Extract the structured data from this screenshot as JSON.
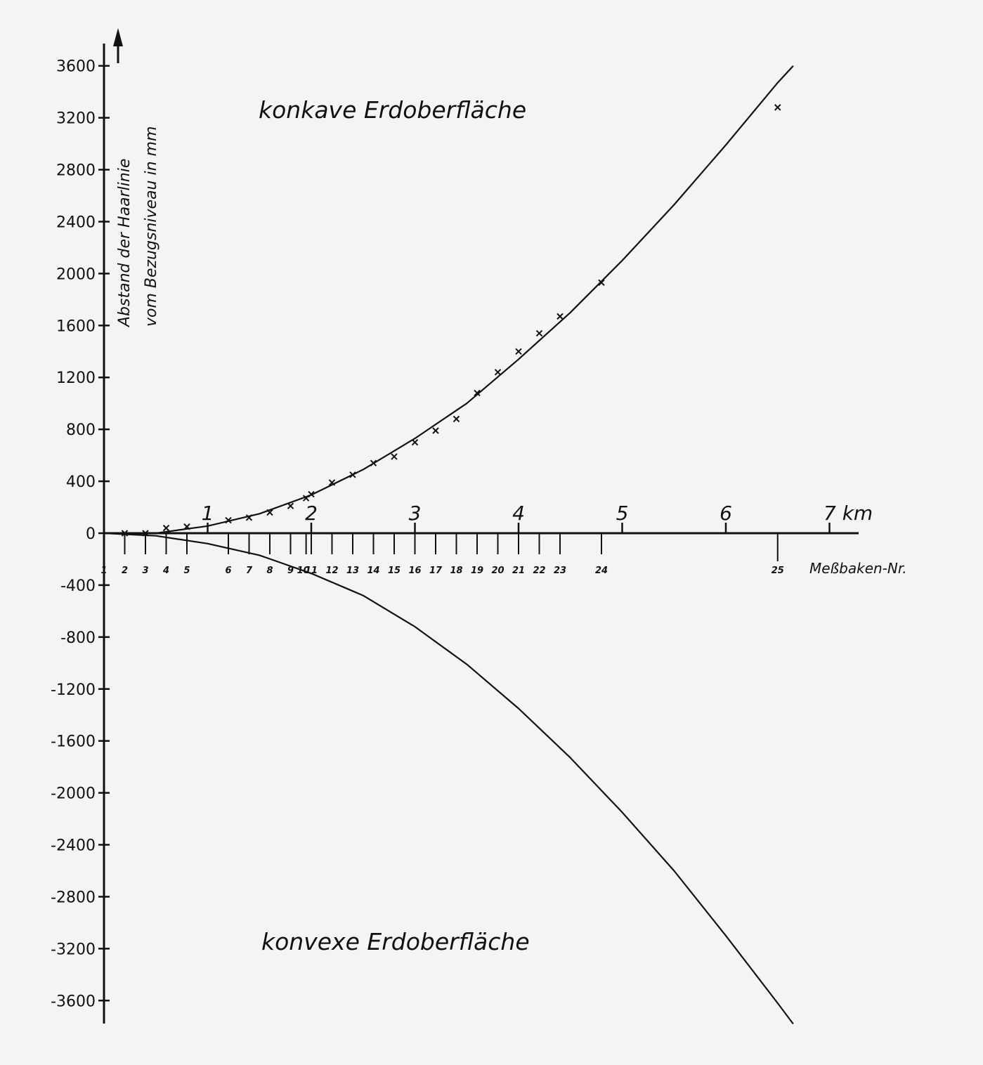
{
  "chart_data": {
    "type": "line",
    "ylabel_line1": "Abstand der Haarlinie",
    "ylabel_line2": "vom Bezugsniveau in mm",
    "x_unit_label": "7 km",
    "baken_label": "Meßbaken-Nr.",
    "annotation_top": "konkave Erdoberfläche",
    "annotation_bottom": "konvexe Erdoberfläche",
    "xlim": [
      -0.1,
      7.3
    ],
    "ylim": [
      -3800,
      3800
    ],
    "yticks": [
      3600,
      3200,
      2800,
      2400,
      2000,
      1600,
      1200,
      800,
      400,
      0,
      -400,
      -800,
      -1200,
      -1600,
      -2000,
      -2400,
      -2800,
      -3200,
      -3600
    ],
    "ytick_labels": [
      "3600",
      "3200",
      "2800",
      "2400",
      "2000",
      "1600",
      "1200",
      "800",
      "400",
      "0",
      "-400",
      "-800",
      "-1200",
      "-1600",
      "-2000",
      "-2400",
      "-2800",
      "-3200",
      "-3600"
    ],
    "xticks": [
      1,
      2,
      3,
      4,
      5,
      6,
      7
    ],
    "xtick_labels": [
      "1",
      "2",
      "3",
      "4",
      "5",
      "6",
      ""
    ],
    "baken": [
      {
        "n": "1",
        "x": 0.0
      },
      {
        "n": "2",
        "x": 0.2
      },
      {
        "n": "3",
        "x": 0.4
      },
      {
        "n": "4",
        "x": 0.6
      },
      {
        "n": "5",
        "x": 0.8
      },
      {
        "n": "6",
        "x": 1.2
      },
      {
        "n": "7",
        "x": 1.4
      },
      {
        "n": "8",
        "x": 1.6
      },
      {
        "n": "9",
        "x": 1.8
      },
      {
        "n": "10",
        "x": 1.95
      },
      {
        "n": "11",
        "x": 2.0
      },
      {
        "n": "12",
        "x": 2.2
      },
      {
        "n": "13",
        "x": 2.4
      },
      {
        "n": "14",
        "x": 2.6
      },
      {
        "n": "15",
        "x": 2.8
      },
      {
        "n": "16",
        "x": 3.0
      },
      {
        "n": "17",
        "x": 3.2
      },
      {
        "n": "18",
        "x": 3.4
      },
      {
        "n": "19",
        "x": 3.6
      },
      {
        "n": "20",
        "x": 3.8
      },
      {
        "n": "21",
        "x": 4.0
      },
      {
        "n": "22",
        "x": 4.2
      },
      {
        "n": "23",
        "x": 4.4
      },
      {
        "n": "24",
        "x": 4.8
      },
      {
        "n": "25",
        "x": 6.5
      }
    ],
    "series": [
      {
        "kind": "measured",
        "points": [
          {
            "x": 0.2,
            "y": 0
          },
          {
            "x": 0.4,
            "y": 0
          },
          {
            "x": 0.6,
            "y": 40
          },
          {
            "x": 0.8,
            "y": 50
          },
          {
            "x": 1.2,
            "y": 100
          },
          {
            "x": 1.4,
            "y": 120
          },
          {
            "x": 1.6,
            "y": 160
          },
          {
            "x": 1.8,
            "y": 210
          },
          {
            "x": 1.95,
            "y": 270
          },
          {
            "x": 2.0,
            "y": 300
          },
          {
            "x": 2.2,
            "y": 390
          },
          {
            "x": 2.4,
            "y": 450
          },
          {
            "x": 2.6,
            "y": 540
          },
          {
            "x": 2.8,
            "y": 590
          },
          {
            "x": 3.0,
            "y": 700
          },
          {
            "x": 3.2,
            "y": 790
          },
          {
            "x": 3.4,
            "y": 880
          },
          {
            "x": 3.6,
            "y": 1080
          },
          {
            "x": 3.8,
            "y": 1240
          },
          {
            "x": 4.0,
            "y": 1400
          },
          {
            "x": 4.2,
            "y": 1540
          },
          {
            "x": 4.4,
            "y": 1670
          },
          {
            "x": 4.8,
            "y": 1930
          },
          {
            "x": 6.5,
            "y": 3280
          }
        ]
      },
      {
        "kind": "concave-curve",
        "points": [
          {
            "x": 0.0,
            "y": 0
          },
          {
            "x": 0.5,
            "y": 0
          },
          {
            "x": 1.0,
            "y": 55
          },
          {
            "x": 1.5,
            "y": 150
          },
          {
            "x": 2.0,
            "y": 295
          },
          {
            "x": 2.5,
            "y": 490
          },
          {
            "x": 3.0,
            "y": 730
          },
          {
            "x": 3.5,
            "y": 1000
          },
          {
            "x": 4.0,
            "y": 1340
          },
          {
            "x": 4.5,
            "y": 1700
          },
          {
            "x": 5.0,
            "y": 2100
          },
          {
            "x": 5.5,
            "y": 2530
          },
          {
            "x": 6.0,
            "y": 2990
          },
          {
            "x": 6.5,
            "y": 3470
          },
          {
            "x": 6.65,
            "y": 3600
          }
        ]
      },
      {
        "kind": "convex-curve",
        "points": [
          {
            "x": 0.0,
            "y": 0
          },
          {
            "x": 0.5,
            "y": -20
          },
          {
            "x": 1.0,
            "y": -80
          },
          {
            "x": 1.5,
            "y": -170
          },
          {
            "x": 2.0,
            "y": -310
          },
          {
            "x": 2.5,
            "y": -480
          },
          {
            "x": 3.0,
            "y": -720
          },
          {
            "x": 3.5,
            "y": -1010
          },
          {
            "x": 4.0,
            "y": -1350
          },
          {
            "x": 4.5,
            "y": -1730
          },
          {
            "x": 5.0,
            "y": -2150
          },
          {
            "x": 5.5,
            "y": -2600
          },
          {
            "x": 6.0,
            "y": -3100
          },
          {
            "x": 6.5,
            "y": -3620
          },
          {
            "x": 6.65,
            "y": -3780
          }
        ]
      }
    ]
  }
}
